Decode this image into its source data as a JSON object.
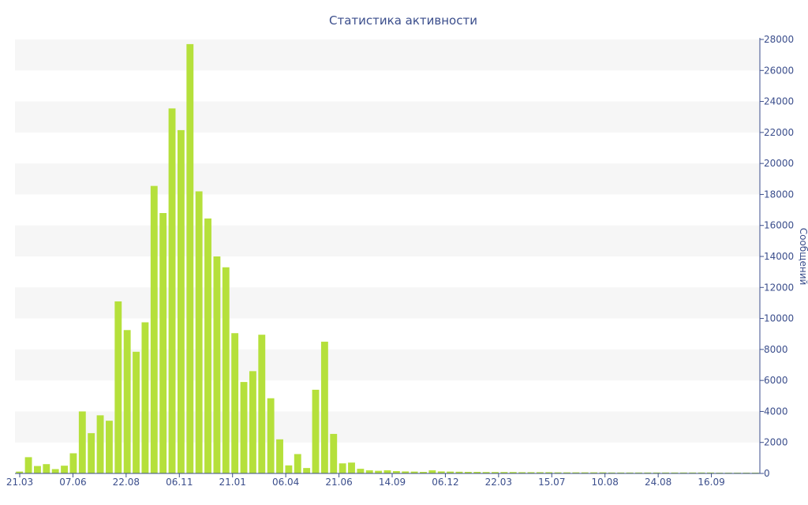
{
  "chart_data": {
    "type": "bar",
    "title": "Статистика активности",
    "ylabel": "Сообщений",
    "xlabel": "",
    "ylim": [
      0,
      28000
    ],
    "y_ticks": [
      0,
      2000,
      4000,
      6000,
      8000,
      10000,
      12000,
      14000,
      16000,
      18000,
      20000,
      22000,
      24000,
      26000,
      28000
    ],
    "x_tick_labels": [
      "21.03",
      "07.06",
      "22.08",
      "06.11",
      "21.01",
      "06.04",
      "21.06",
      "14.09",
      "06.12",
      "22.03",
      "15.07",
      "10.08",
      "24.08",
      "16.09"
    ],
    "y_axis_side": "right",
    "grid": "alternating horizontal bands",
    "legend": "none",
    "bar_color": "#b5e03b",
    "band_color": "#f6f6f6",
    "text_color": "#3b4e8c",
    "values": [
      120,
      1050,
      480,
      600,
      280,
      500,
      1300,
      4000,
      2600,
      3750,
      3400,
      11100,
      9250,
      7850,
      9750,
      18550,
      16800,
      23550,
      22150,
      27700,
      18200,
      16450,
      14000,
      13300,
      9050,
      5900,
      6600,
      8950,
      4850,
      2200,
      520,
      1250,
      350,
      5400,
      8500,
      2550,
      650,
      700,
      300,
      200,
      170,
      200,
      150,
      130,
      120,
      100,
      200,
      130,
      120,
      110,
      100,
      100,
      90,
      90,
      90,
      90,
      80,
      80,
      80,
      80,
      70,
      70,
      70,
      70,
      70,
      70,
      60,
      60,
      60,
      60,
      60,
      60,
      60,
      60,
      60,
      60,
      60,
      60,
      50,
      50,
      50,
      50,
      50
    ]
  }
}
